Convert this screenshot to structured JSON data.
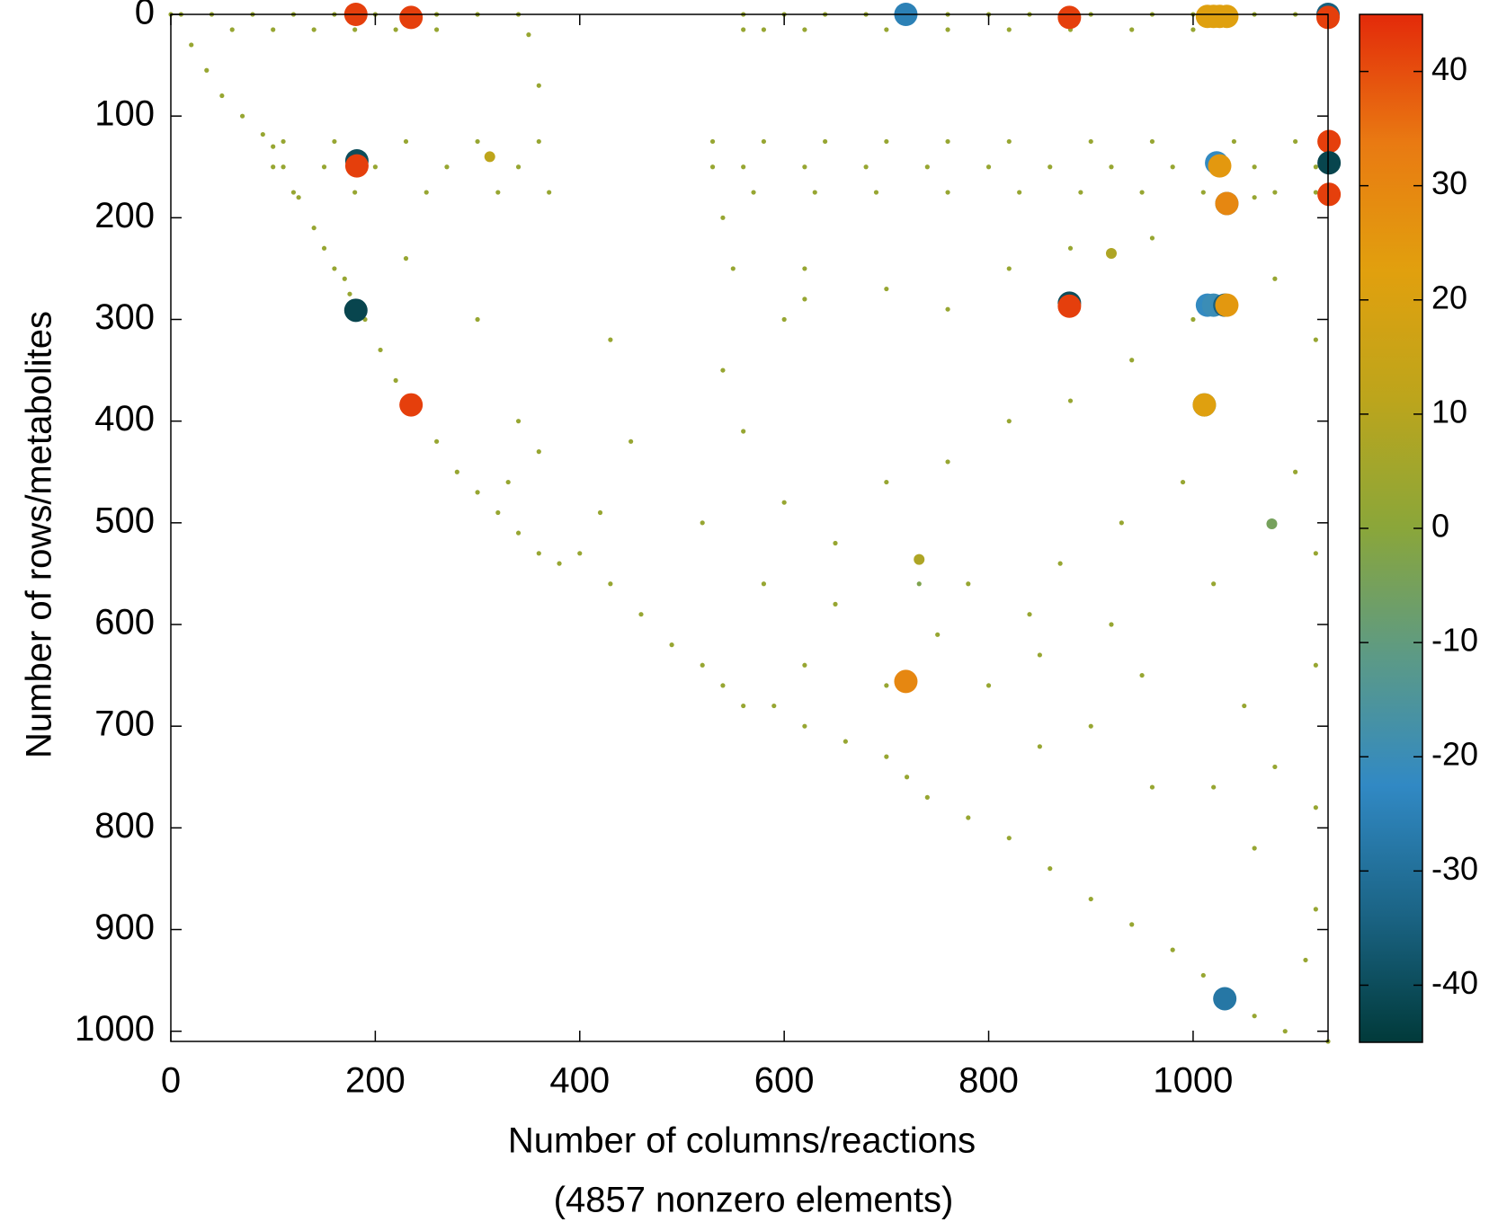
{
  "chart_data": {
    "type": "scatter",
    "xlabel": [
      "Number of columns/reactions",
      "(4857 nonzero elements)"
    ],
    "ylabel": "Number of rows/metabolites",
    "xlim": [
      0,
      1132
    ],
    "ylim": [
      0,
      1010
    ],
    "y_reversed": true,
    "xticks": [
      0,
      200,
      400,
      600,
      800,
      1000
    ],
    "yticks": [
      0,
      100,
      200,
      300,
      400,
      500,
      600,
      700,
      800,
      900,
      1000
    ],
    "clim": [
      -45,
      45
    ],
    "cticks": [
      -40,
      -30,
      -20,
      -10,
      0,
      10,
      20,
      30,
      40
    ],
    "colormap": [
      "#013a3a",
      "#1b6485",
      "#3189c4",
      "#5c9a86",
      "#8aa63a",
      "#bca51c",
      "#e1a00e",
      "#e97a12",
      "#e32a0a"
    ],
    "x": [
      0,
      20,
      35,
      50,
      70,
      90,
      100,
      110,
      125,
      140,
      150,
      160,
      175,
      190,
      205,
      220,
      240,
      260,
      280,
      300,
      320,
      340,
      360,
      380,
      400,
      430,
      460,
      490,
      520,
      540,
      560,
      590,
      620,
      660,
      700,
      720,
      740,
      780,
      820,
      860,
      900,
      940,
      980,
      1010,
      1030,
      1060,
      1090,
      1132,
      10,
      40,
      80,
      120,
      160,
      200,
      260,
      300,
      340,
      560,
      600,
      640,
      680,
      760,
      800,
      840,
      900,
      960,
      1000,
      1060,
      1100,
      60,
      100,
      140,
      180,
      220,
      260,
      560,
      580,
      620,
      700,
      760,
      820,
      880,
      940,
      1000,
      110,
      160,
      230,
      300,
      360,
      530,
      580,
      640,
      700,
      760,
      820,
      900,
      960,
      1040,
      1100,
      100,
      150,
      200,
      270,
      340,
      530,
      560,
      620,
      680,
      740,
      800,
      860,
      920,
      980,
      1060,
      1120,
      120,
      180,
      250,
      320,
      370,
      570,
      630,
      690,
      760,
      830,
      890,
      950,
      1010,
      1080,
      1120,
      170,
      230,
      300,
      340,
      360,
      330,
      560,
      600,
      650,
      700,
      760,
      820,
      880,
      940,
      1000,
      1080,
      1120,
      620,
      700,
      760,
      820,
      880,
      960,
      1060,
      580,
      650,
      750,
      850,
      950,
      1050,
      1120,
      900,
      960,
      1060,
      1120,
      1110,
      800,
      700,
      620,
      620,
      600,
      540,
      430,
      450,
      420,
      520,
      870,
      930,
      990,
      1100,
      1120,
      1020,
      780,
      840,
      1080,
      1020,
      1120,
      850,
      920,
      360,
      350,
      540,
      550,
      920,
      312,
      732,
      732,
      1077,
      181,
      235,
      719,
      879,
      1014,
      1020,
      1026,
      1033,
      1132,
      1132,
      182,
      182,
      1133,
      1133,
      1133,
      1023,
      1026,
      1033,
      1033,
      181,
      879,
      879,
      1014,
      1020,
      1031,
      1033,
      235,
      1011,
      1011,
      719,
      1031
    ],
    "y": [
      0,
      30,
      55,
      80,
      100,
      118,
      130,
      150,
      180,
      210,
      230,
      250,
      275,
      300,
      330,
      360,
      390,
      420,
      450,
      470,
      490,
      510,
      530,
      540,
      530,
      560,
      590,
      620,
      640,
      660,
      680,
      680,
      700,
      715,
      730,
      750,
      770,
      790,
      810,
      840,
      870,
      895,
      920,
      945,
      965,
      985,
      1000,
      1010,
      0,
      0,
      0,
      0,
      0,
      0,
      0,
      0,
      0,
      0,
      0,
      0,
      0,
      0,
      0,
      0,
      0,
      0,
      0,
      0,
      0,
      15,
      15,
      15,
      15,
      15,
      15,
      15,
      15,
      15,
      15,
      15,
      15,
      15,
      15,
      15,
      125,
      125,
      125,
      125,
      125,
      125,
      125,
      125,
      125,
      125,
      125,
      125,
      125,
      125,
      125,
      150,
      150,
      150,
      150,
      150,
      150,
      150,
      150,
      150,
      150,
      150,
      150,
      150,
      150,
      150,
      150,
      175,
      175,
      175,
      175,
      175,
      175,
      175,
      175,
      175,
      175,
      175,
      175,
      175,
      175,
      175,
      260,
      240,
      300,
      400,
      430,
      460,
      410,
      480,
      520,
      460,
      440,
      400,
      380,
      340,
      300,
      260,
      320,
      250,
      270,
      290,
      250,
      230,
      220,
      180,
      560,
      580,
      610,
      630,
      650,
      680,
      640,
      700,
      760,
      820,
      880,
      930,
      660,
      660,
      640,
      280,
      300,
      350,
      320,
      420,
      490,
      500,
      540,
      500,
      460,
      450,
      530,
      560,
      560,
      590,
      740,
      760,
      780,
      720,
      600,
      70,
      20,
      200,
      250,
      235,
      140,
      536,
      560,
      501,
      0,
      3,
      0,
      3,
      2,
      2,
      2,
      2,
      0,
      3,
      144,
      149,
      125,
      146,
      177,
      146,
      149,
      186,
      186,
      291,
      284,
      287,
      286,
      286,
      286,
      286,
      384,
      384,
      384,
      656,
      968
    ],
    "values": [
      3,
      3,
      3,
      3,
      3,
      3,
      3,
      3,
      3,
      3,
      3,
      3,
      3,
      3,
      3,
      3,
      3,
      3,
      3,
      3,
      3,
      3,
      3,
      3,
      3,
      3,
      3,
      3,
      3,
      3,
      3,
      3,
      3,
      3,
      3,
      3,
      3,
      3,
      3,
      3,
      3,
      3,
      3,
      3,
      3,
      3,
      3,
      3,
      3,
      3,
      3,
      3,
      3,
      3,
      3,
      3,
      3,
      3,
      3,
      3,
      3,
      3,
      3,
      3,
      3,
      3,
      3,
      3,
      3,
      3,
      3,
      3,
      3,
      3,
      3,
      3,
      3,
      3,
      3,
      3,
      3,
      3,
      3,
      3,
      3,
      3,
      3,
      3,
      3,
      3,
      3,
      3,
      3,
      3,
      3,
      3,
      3,
      3,
      3,
      3,
      3,
      3,
      3,
      3,
      3,
      3,
      3,
      3,
      3,
      3,
      3,
      3,
      3,
      3,
      3,
      3,
      3,
      3,
      3,
      3,
      3,
      3,
      3,
      3,
      3,
      3,
      3,
      3,
      3,
      3,
      3,
      3,
      3,
      3,
      3,
      3,
      3,
      3,
      3,
      3,
      3,
      3,
      3,
      3,
      3,
      3,
      3,
      3,
      3,
      3,
      3,
      3,
      3,
      3,
      3,
      3,
      3,
      3,
      3,
      3,
      3,
      3,
      3,
      3,
      3,
      3,
      3,
      3,
      3,
      3,
      3,
      3,
      3,
      3,
      3,
      3,
      3,
      3,
      3,
      3,
      3,
      3,
      3,
      3,
      3,
      3,
      3,
      3,
      3,
      3,
      3,
      3,
      3,
      8,
      12,
      8,
      -3,
      -5,
      42,
      42,
      -25,
      42,
      22,
      22,
      22,
      22,
      -35,
      42,
      -40,
      42,
      42,
      -42,
      42,
      -22,
      25,
      -22,
      30,
      -42,
      -40,
      42,
      -22,
      -20,
      -35,
      25,
      42,
      -20,
      22,
      30,
      -28
    ]
  }
}
